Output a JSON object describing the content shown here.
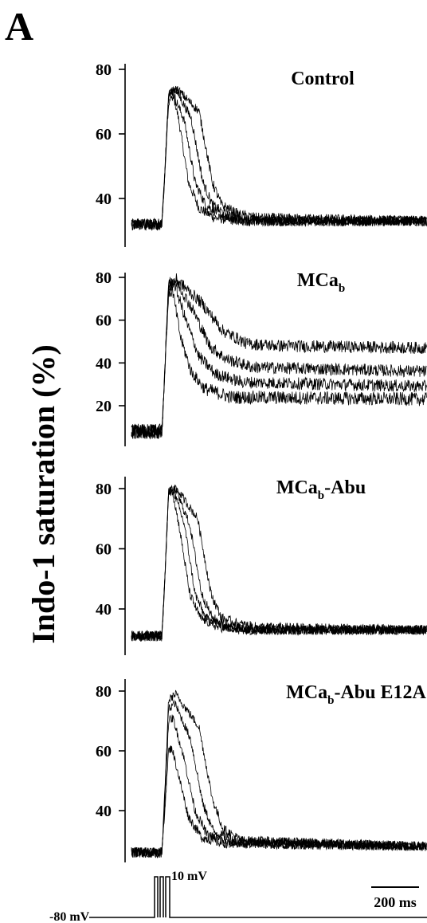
{
  "figure": {
    "panel_letter": "A",
    "ylabel": "Indo-1 saturation (%)",
    "scale_bar_label": "200 ms",
    "protocol": {
      "hold_label": "-80 mV",
      "step_label": "10 mV"
    }
  },
  "chart_data": [
    {
      "type": "line",
      "title": "Control",
      "ylabel": "Indo-1 saturation (%)",
      "yticks": [
        40,
        60,
        80
      ],
      "ylim": [
        28,
        80
      ],
      "xlim_ms": [
        -150,
        1000
      ],
      "baseline": 32,
      "series": [
        {
          "values": [
            [
              0,
              32
            ],
            [
              12,
              50
            ],
            [
              25,
              72
            ],
            [
              40,
              73
            ],
            [
              62,
              65
            ],
            [
              100,
              45
            ],
            [
              140,
              37
            ],
            [
              200,
              34
            ],
            [
              300,
              33
            ],
            [
              1000,
              33
            ]
          ]
        },
        {
          "values": [
            [
              0,
              32
            ],
            [
              12,
              50
            ],
            [
              25,
              70
            ],
            [
              45,
              72
            ],
            [
              85,
              64
            ],
            [
              125,
              45
            ],
            [
              165,
              38
            ],
            [
              240,
              34
            ],
            [
              320,
              33
            ],
            [
              1000,
              33
            ]
          ]
        },
        {
          "values": [
            [
              0,
              32
            ],
            [
              12,
              50
            ],
            [
              25,
              72
            ],
            [
              50,
              74
            ],
            [
              110,
              65
            ],
            [
              155,
              45
            ],
            [
              190,
              38
            ],
            [
              260,
              34
            ],
            [
              340,
              33
            ],
            [
              1000,
              33
            ]
          ]
        },
        {
          "values": [
            [
              0,
              32
            ],
            [
              12,
              50
            ],
            [
              25,
              72
            ],
            [
              55,
              74
            ],
            [
              140,
              67
            ],
            [
              190,
              45
            ],
            [
              225,
              38
            ],
            [
              290,
              35
            ],
            [
              360,
              34
            ],
            [
              1000,
              33
            ]
          ]
        }
      ]
    },
    {
      "type": "line",
      "title": "MCab",
      "title_main": "MCa",
      "title_sub": "b",
      "ylabel": "Indo-1 saturation (%)",
      "yticks": [
        20,
        40,
        60,
        80
      ],
      "ylim": [
        5,
        84
      ],
      "xlim_ms": [
        -150,
        1000
      ],
      "baseline": 8,
      "series": [
        {
          "values": [
            [
              0,
              8
            ],
            [
              12,
              40
            ],
            [
              25,
              72
            ],
            [
              40,
              74
            ],
            [
              70,
              52
            ],
            [
              110,
              36
            ],
            [
              160,
              28
            ],
            [
              260,
              24
            ],
            [
              1000,
              23
            ]
          ]
        },
        {
          "values": [
            [
              0,
              8
            ],
            [
              12,
              40
            ],
            [
              25,
              76
            ],
            [
              45,
              78
            ],
            [
              90,
              60
            ],
            [
              140,
              43
            ],
            [
              200,
              35
            ],
            [
              300,
              31
            ],
            [
              1000,
              29
            ]
          ]
        },
        {
          "values": [
            [
              0,
              8
            ],
            [
              12,
              40
            ],
            [
              25,
              76
            ],
            [
              55,
              78
            ],
            [
              120,
              64
            ],
            [
              180,
              48
            ],
            [
              240,
              42
            ],
            [
              340,
              38
            ],
            [
              1000,
              36
            ]
          ]
        },
        {
          "values": [
            [
              0,
              8
            ],
            [
              12,
              40
            ],
            [
              25,
              77
            ],
            [
              55,
              79
            ],
            [
              150,
              68
            ],
            [
              230,
              55
            ],
            [
              320,
              49
            ],
            [
              440,
              48
            ],
            [
              1000,
              47
            ]
          ]
        }
      ]
    },
    {
      "type": "line",
      "title": "MCab-Abu",
      "title_main": "MCa",
      "title_sub": "b",
      "title_suffix": "-Abu",
      "ylabel": "Indo-1 saturation (%)",
      "yticks": [
        40,
        60,
        80
      ],
      "ylim": [
        26,
        84
      ],
      "xlim_ms": [
        -150,
        1000
      ],
      "baseline": 31,
      "series": [
        {
          "values": [
            [
              0,
              31
            ],
            [
              12,
              52
            ],
            [
              25,
              79
            ],
            [
              38,
              80
            ],
            [
              64,
              68
            ],
            [
              105,
              45
            ],
            [
              145,
              37
            ],
            [
              210,
              34
            ],
            [
              300,
              33
            ],
            [
              1000,
              33
            ]
          ]
        },
        {
          "values": [
            [
              0,
              31
            ],
            [
              12,
              52
            ],
            [
              25,
              78
            ],
            [
              45,
              79
            ],
            [
              85,
              68
            ],
            [
              125,
              45
            ],
            [
              165,
              37
            ],
            [
              240,
              34
            ],
            [
              320,
              33
            ],
            [
              1000,
              33
            ]
          ]
        },
        {
          "values": [
            [
              0,
              31
            ],
            [
              12,
              52
            ],
            [
              25,
              79
            ],
            [
              50,
              80
            ],
            [
              105,
              68
            ],
            [
              150,
              45
            ],
            [
              190,
              37
            ],
            [
              260,
              34
            ],
            [
              340,
              33
            ],
            [
              1000,
              33
            ]
          ]
        },
        {
          "values": [
            [
              0,
              31
            ],
            [
              12,
              52
            ],
            [
              25,
              79
            ],
            [
              55,
              80
            ],
            [
              135,
              70
            ],
            [
              185,
              45
            ],
            [
              225,
              37
            ],
            [
              290,
              35
            ],
            [
              360,
              34
            ],
            [
              1000,
              33
            ]
          ]
        }
      ]
    },
    {
      "type": "line",
      "title": "MCab-Abu E12A",
      "title_main": "MCa",
      "title_sub": "b",
      "title_suffix": "-Abu E12A",
      "ylabel": "Indo-1 saturation (%)",
      "yticks": [
        40,
        60,
        80
      ],
      "ylim": [
        22,
        84
      ],
      "xlim_ms": [
        -150,
        1000
      ],
      "baseline": 26,
      "series": [
        {
          "values": [
            [
              0,
              26
            ],
            [
              12,
              42
            ],
            [
              25,
              60
            ],
            [
              38,
              61
            ],
            [
              62,
              52
            ],
            [
              100,
              38
            ],
            [
              150,
              31
            ],
            [
              230,
              29
            ],
            [
              1000,
              28
            ]
          ]
        },
        {
          "values": [
            [
              0,
              26
            ],
            [
              12,
              45
            ],
            [
              25,
              70
            ],
            [
              42,
              71
            ],
            [
              82,
              58
            ],
            [
              125,
              40
            ],
            [
              170,
              32
            ],
            [
              250,
              29
            ],
            [
              1000,
              28
            ]
          ]
        },
        {
          "values": [
            [
              0,
              26
            ],
            [
              12,
              47
            ],
            [
              25,
              74
            ],
            [
              48,
              76
            ],
            [
              108,
              64
            ],
            [
              155,
              42
            ],
            [
              195,
              33
            ],
            [
              270,
              30
            ],
            [
              1000,
              28
            ]
          ]
        },
        {
          "values": [
            [
              0,
              26
            ],
            [
              12,
              48
            ],
            [
              25,
              77
            ],
            [
              52,
              79
            ],
            [
              140,
              68
            ],
            [
              190,
              44
            ],
            [
              230,
              34
            ],
            [
              300,
              30
            ],
            [
              1000,
              28
            ]
          ]
        }
      ]
    }
  ]
}
